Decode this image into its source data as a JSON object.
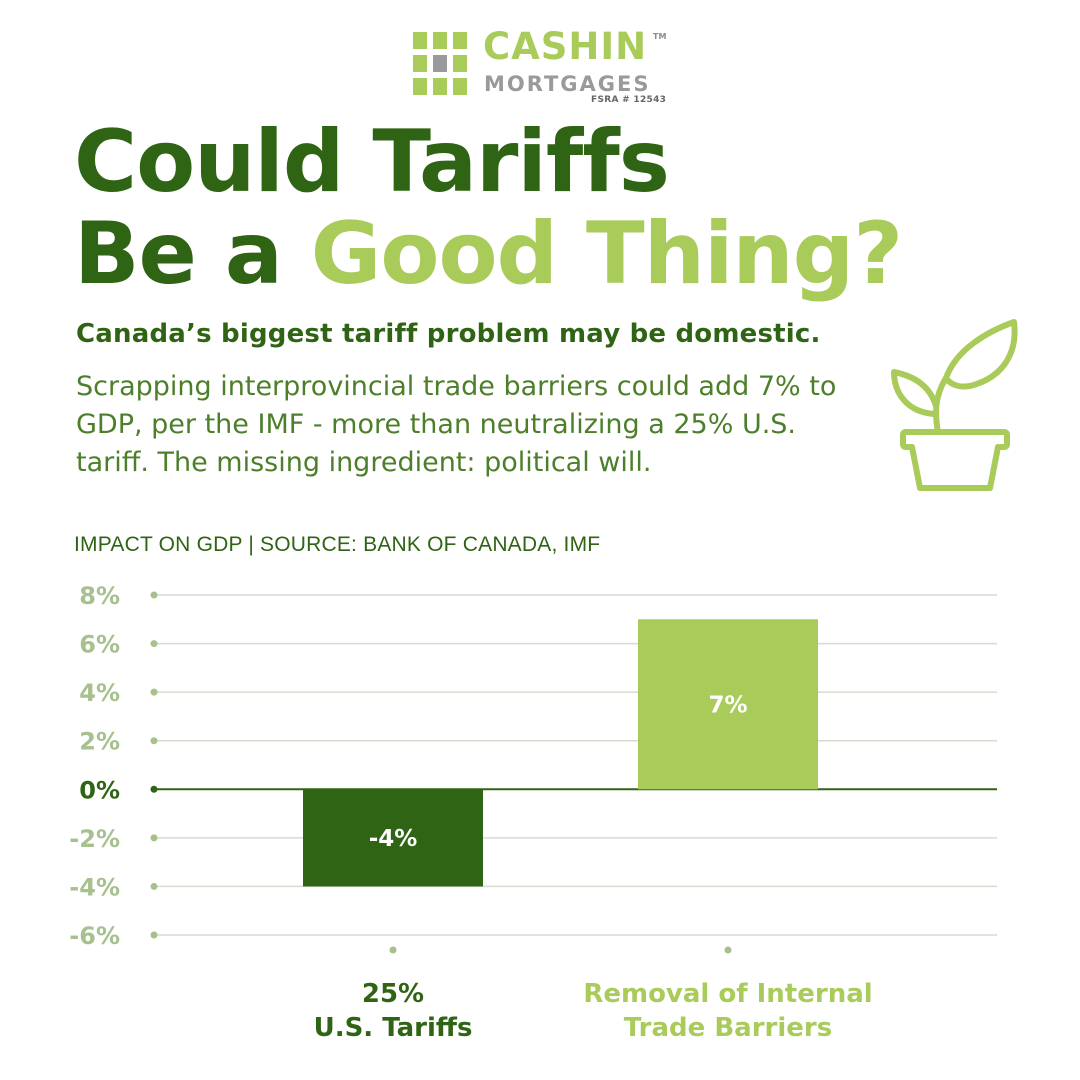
{
  "logo": {
    "name": "CASHIN",
    "trademark": "TM",
    "subtitle": "MORTGAGES",
    "license": "FSRA # 12543"
  },
  "headline": {
    "line1": "Could Tariffs",
    "line2_prefix": "Be a ",
    "line2_accent": "Good Thing?"
  },
  "subhead": "Canada’s biggest tariff problem may be domestic.",
  "body": "Scrapping interprovincial trade barriers could add 7% to GDP, per the IMF - more than neutralizing a 25% U.S. tariff. The missing ingredient: political will.",
  "chart_caption": "IMPACT ON GDP | SOURCE: BANK OF CANADA, IMF",
  "icons": {
    "plant": "plant-pot-icon",
    "logo": "grid-logo-icon"
  },
  "colors": {
    "dark_green": "#2f6414",
    "light_green": "#a9cb5a",
    "tick_green": "#a6c08e",
    "grid": "#d6dccf"
  },
  "chart_data": {
    "type": "bar",
    "title": "IMPACT ON GDP | SOURCE: BANK OF CANADA, IMF",
    "categories": [
      "25%\nU.S. Tariffs",
      "Removal of Internal\nTrade Barriers"
    ],
    "values": [
      -4,
      7
    ],
    "value_labels": [
      "-4%",
      "7%"
    ],
    "bar_colors": [
      "#2f6414",
      "#a9cb5a"
    ],
    "ylim": [
      -6,
      8
    ],
    "yticks": [
      8,
      6,
      4,
      2,
      0,
      -2,
      -4,
      -6
    ],
    "ytick_labels": [
      "8%",
      "6%",
      "4%",
      "2%",
      "0%",
      "-2%",
      "-4%",
      "-6%"
    ],
    "grid": true,
    "legend": "none"
  }
}
